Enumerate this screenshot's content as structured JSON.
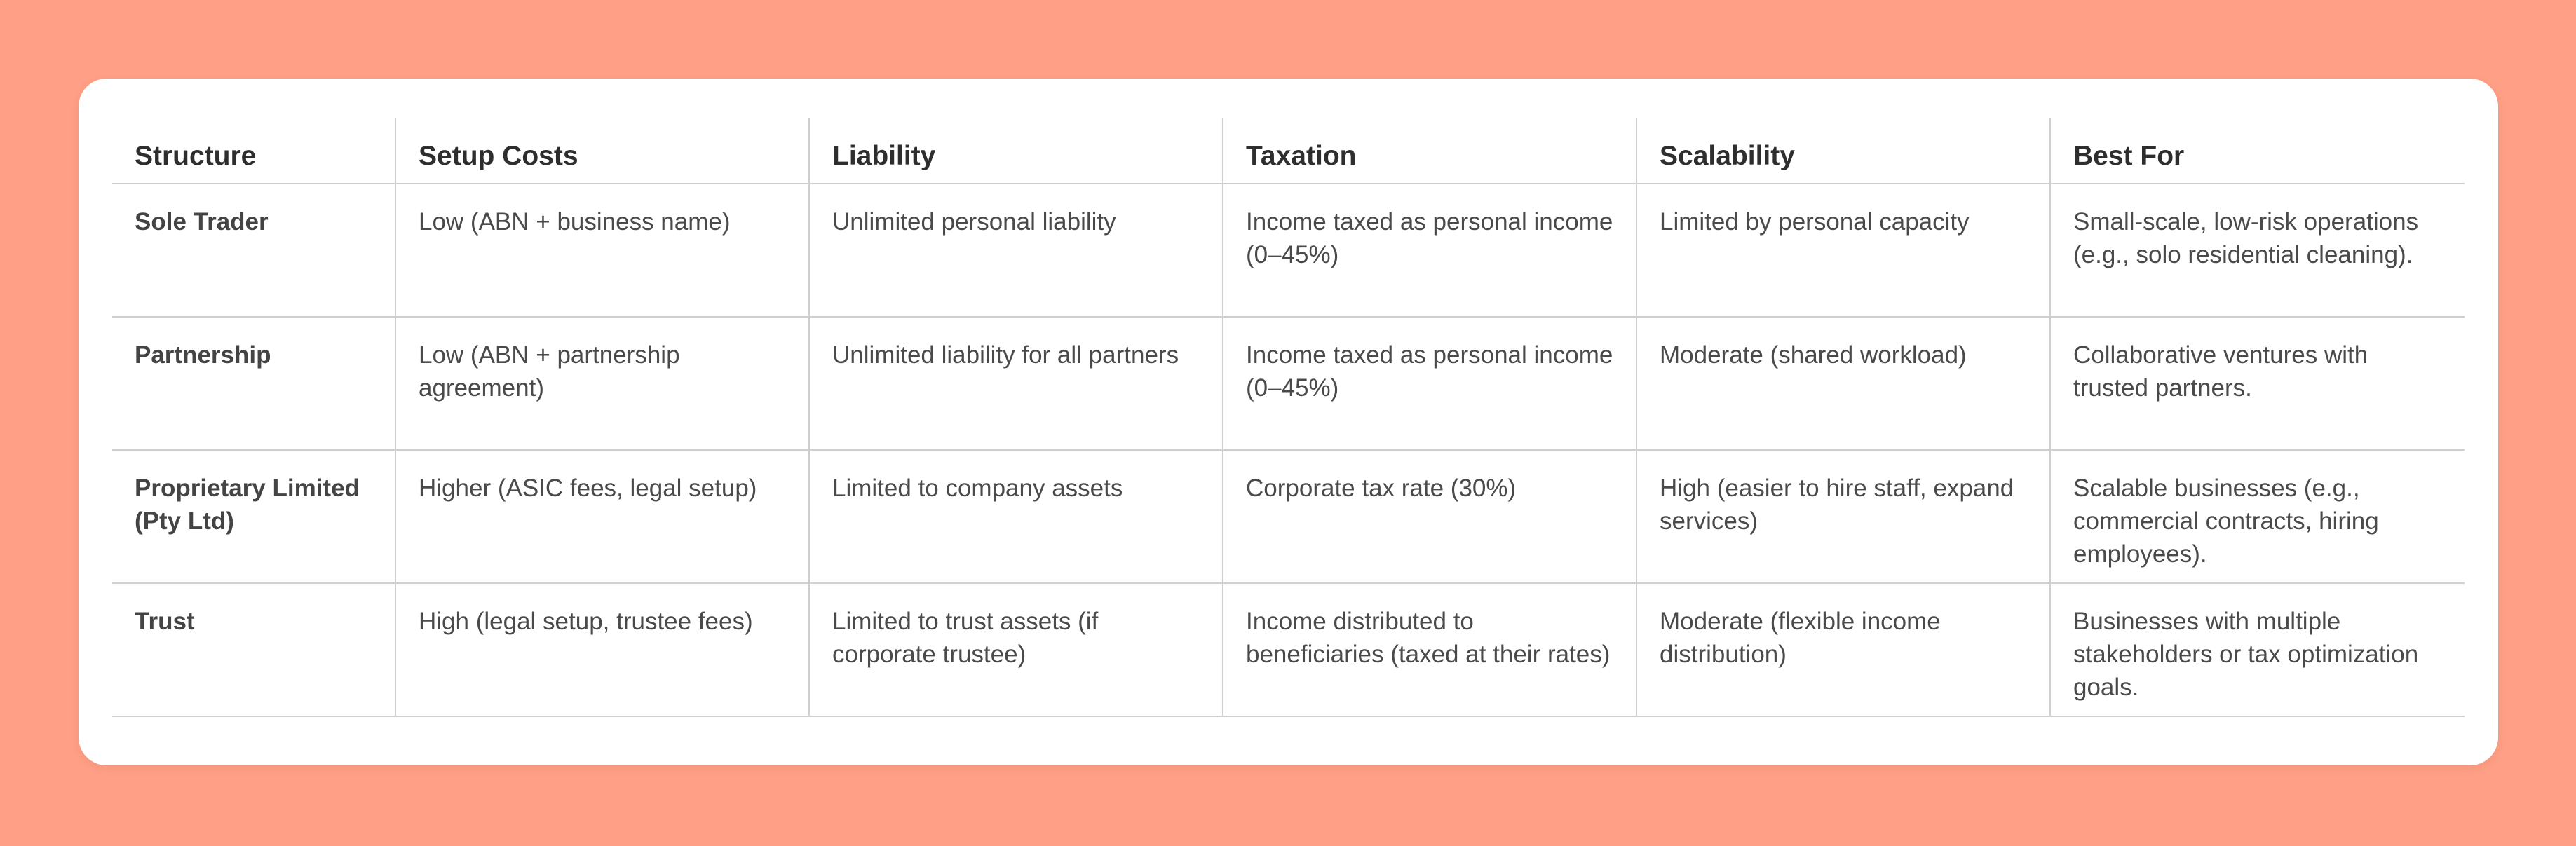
{
  "table": {
    "headers": [
      "Structure",
      "Setup Costs",
      "Liability",
      "Taxation",
      "Scalability",
      "Best For"
    ],
    "rows": [
      {
        "structure": "Sole Trader",
        "setup_costs": "Low (ABN + business name)",
        "liability": "Unlimited personal liability",
        "taxation": "Income taxed as personal income\n(0–45%)",
        "scalability": "Limited by personal capacity",
        "best_for": "Small-scale, low-risk operations (e.g., solo residential cleaning)."
      },
      {
        "structure": "Partnership",
        "setup_costs": "Low (ABN + partnership agreement)",
        "liability": "Unlimited liability for all partners",
        "taxation": "Income taxed as personal income\n(0–45%)",
        "scalability": "Moderate (shared workload)",
        "best_for": "Collaborative ventures with trusted partners."
      },
      {
        "structure": "Proprietary Limited\n(Pty Ltd)",
        "setup_costs": "Higher (ASIC fees, legal setup)",
        "liability": "Limited to company assets",
        "taxation": "Corporate tax rate (30%)",
        "scalability": "High (easier to hire staff, expand services)",
        "best_for": "Scalable businesses (e.g., commercial contracts, hiring employees)."
      },
      {
        "structure": "Trust",
        "setup_costs": "High (legal setup, trustee fees)",
        "liability": "Limited to trust assets (if corporate trustee)",
        "taxation": "Income distributed to beneficiaries (taxed at their rates)",
        "scalability": "Moderate (flexible income distribution)",
        "best_for": "Businesses with multiple stakeholders or tax optimization goals."
      }
    ]
  },
  "colors": {
    "background": "#FF9F85",
    "card": "#FFFFFF",
    "rule": "#CFCFCF",
    "text": "#4A4A4A"
  }
}
